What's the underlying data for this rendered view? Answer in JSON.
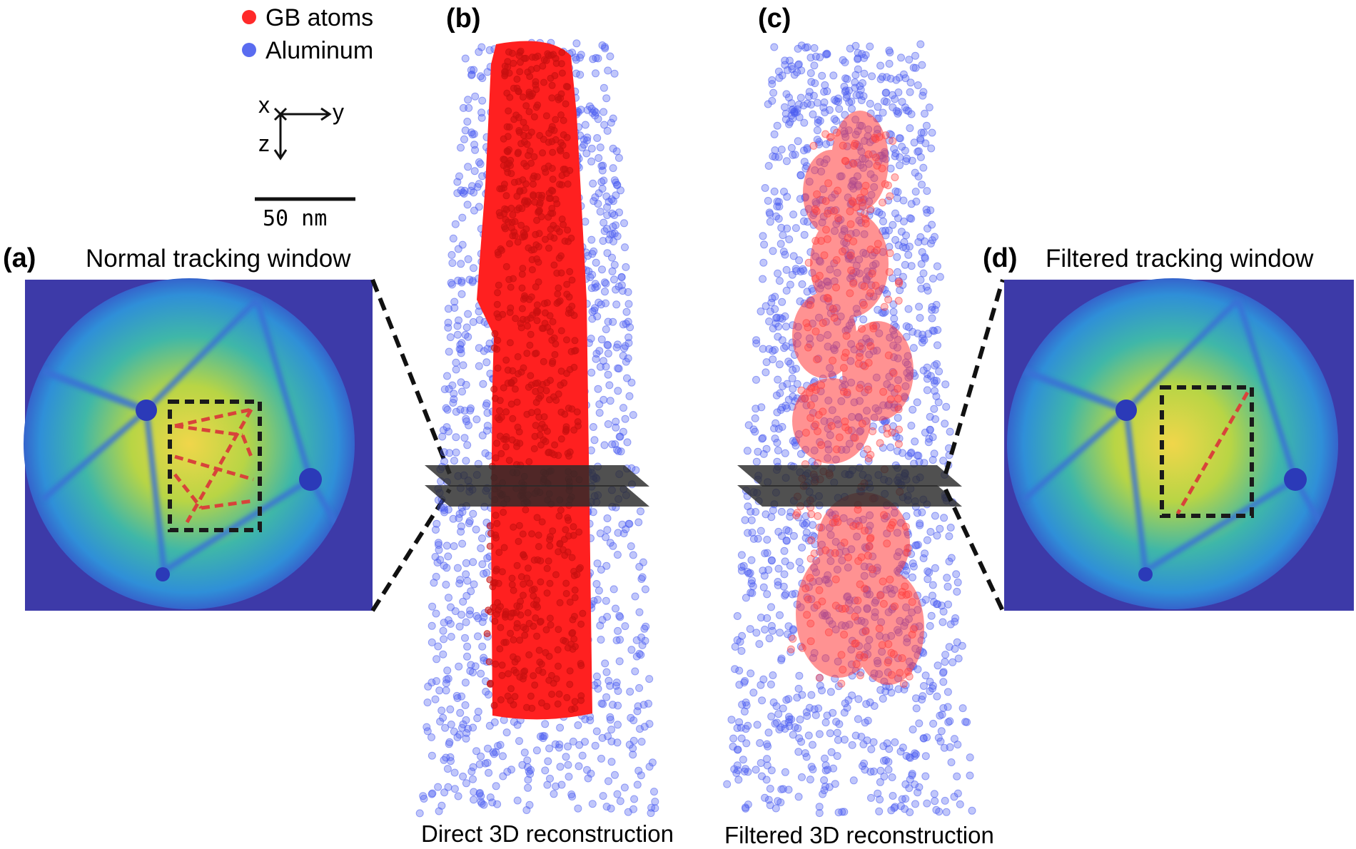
{
  "legend": {
    "items": [
      {
        "label": "GB atoms",
        "color": "#ff2a2a"
      },
      {
        "label": "Aluminum",
        "color": "#5a6cf0"
      }
    ]
  },
  "axes": {
    "x": "x",
    "y": "y",
    "z": "z"
  },
  "scale_bar": {
    "label": "50 nm"
  },
  "panels": {
    "a": {
      "letter": "(a)",
      "title": "Normal tracking window"
    },
    "b": {
      "letter": "(b)",
      "caption": "Direct 3D reconstruction"
    },
    "c": {
      "letter": "(c)",
      "caption": "Filtered 3D reconstruction"
    },
    "d": {
      "letter": "(d)",
      "title": "Filtered tracking window"
    }
  },
  "colors": {
    "gb_atoms": "#ff1f1f",
    "aluminum": "#4a5cf0",
    "detector_background": "#3d3aa8",
    "dashed_window": "#1a1a1a",
    "track_lines": "#d8433a"
  }
}
